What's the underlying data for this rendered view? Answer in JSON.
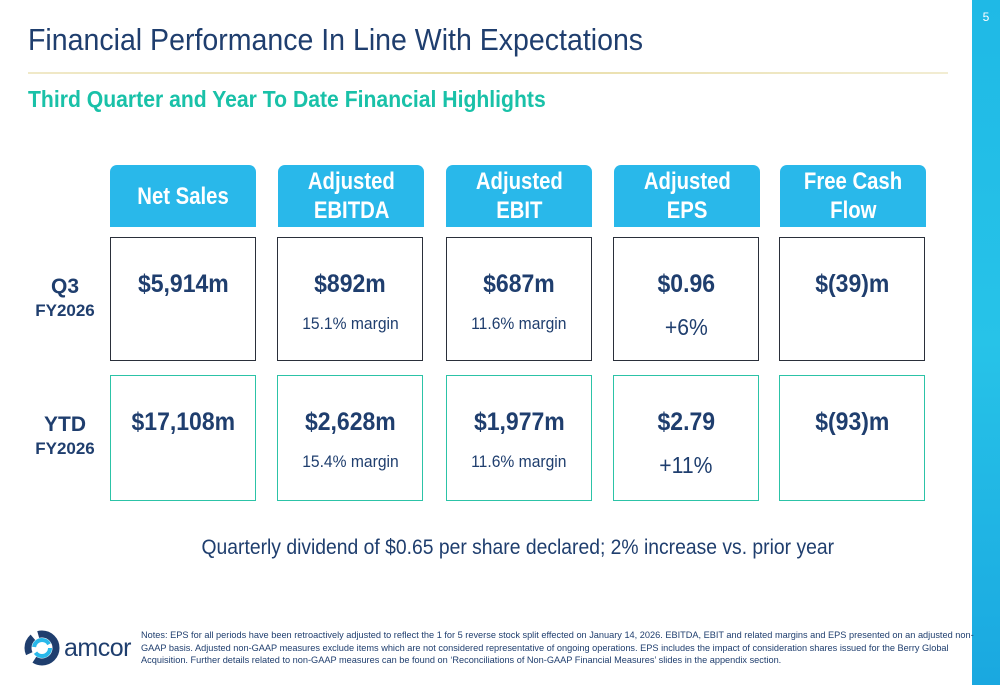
{
  "page_number": "5",
  "title": "Financial Performance In Line With Expectations",
  "subtitle": "Third Quarter and Year To Date Financial Highlights",
  "columns": [
    {
      "label": "Net Sales",
      "label_line2": ""
    },
    {
      "label": "Adjusted",
      "label_line2": "EBITDA"
    },
    {
      "label": "Adjusted",
      "label_line2": "EBIT"
    },
    {
      "label": "Adjusted",
      "label_line2": "EPS"
    },
    {
      "label": "Free Cash",
      "label_line2": "Flow"
    }
  ],
  "rows": [
    {
      "label_line1": "Q3",
      "label_line2": "FY2026",
      "cells": [
        {
          "value": "$5,914m",
          "detail": ""
        },
        {
          "value": "$892m",
          "detail": "15.1% margin"
        },
        {
          "value": "$687m",
          "detail": "11.6% margin"
        },
        {
          "value": "$0.96",
          "detail": "+6%"
        },
        {
          "value": "$(39)m",
          "detail": ""
        }
      ]
    },
    {
      "label_line1": "YTD",
      "label_line2": "FY2026",
      "cells": [
        {
          "value": "$17,108m",
          "detail": ""
        },
        {
          "value": "$2,628m",
          "detail": "15.4% margin"
        },
        {
          "value": "$1,977m",
          "detail": "11.6% margin"
        },
        {
          "value": "$2.79",
          "detail": "+11%"
        },
        {
          "value": "$(93)m",
          "detail": ""
        }
      ]
    }
  ],
  "dividend_note": "Quarterly dividend of $0.65 per share declared; 2% increase vs. prior year",
  "notes": "Notes:  EPS for all periods have been retroactively adjusted to reflect the 1 for 5 reverse stock split effected on January 14, 2026.  EBITDA, EBIT and related margins and EPS presented on an adjusted non-GAAP basis. Adjusted non-GAAP measures exclude items which are not considered representative of ongoing operations.  EPS includes the impact of consideration shares issued for the Berry Global Acquisition. Further details related to non-GAAP measures can be found on ‘Reconciliations of Non-GAAP Financial Measures’ slides in the appendix section.",
  "logo_text": "amcor",
  "colors": {
    "navy": "#1f3e6e",
    "teal": "#19c1a8",
    "header_blue": "#29b8ea",
    "q3_border": "#2a2f3a",
    "ytd_border": "#2cc3a7"
  }
}
